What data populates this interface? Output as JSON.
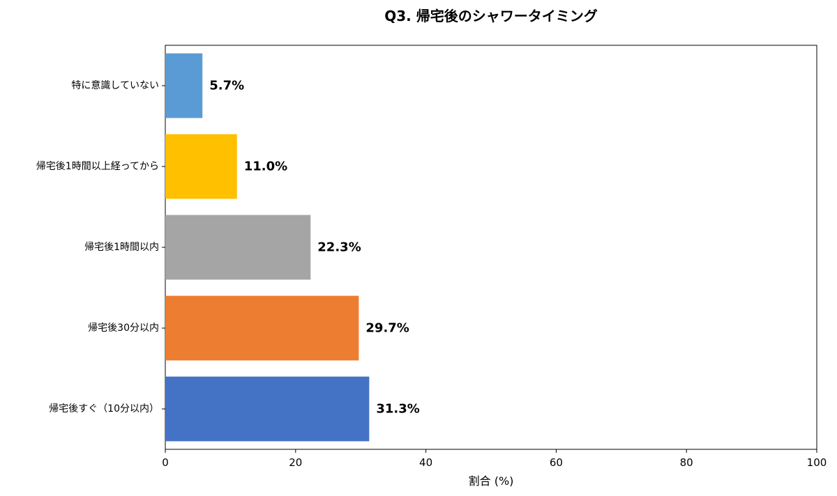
{
  "chart_data": {
    "type": "bar",
    "orientation": "horizontal",
    "title": "Q3. 帰宅後のシャワータイミング",
    "xlabel": "割合 (%)",
    "ylabel": "",
    "xlim": [
      0,
      100
    ],
    "xticks": [
      0,
      20,
      40,
      60,
      80,
      100
    ],
    "categories": [
      "特に意識していない",
      "帰宅後1時間以上経ってから",
      "帰宅後1時間以内",
      "帰宅後30分以内",
      "帰宅後すぐ（10分以内）"
    ],
    "values": [
      5.7,
      11.0,
      22.3,
      29.7,
      31.3
    ],
    "value_labels": [
      "5.7%",
      "11.0%",
      "22.3%",
      "29.7%",
      "31.3%"
    ],
    "colors": [
      "#5b9bd5",
      "#ffc000",
      "#a5a5a5",
      "#ed7d31",
      "#4472c4"
    ],
    "grid": false,
    "legend": "none"
  }
}
